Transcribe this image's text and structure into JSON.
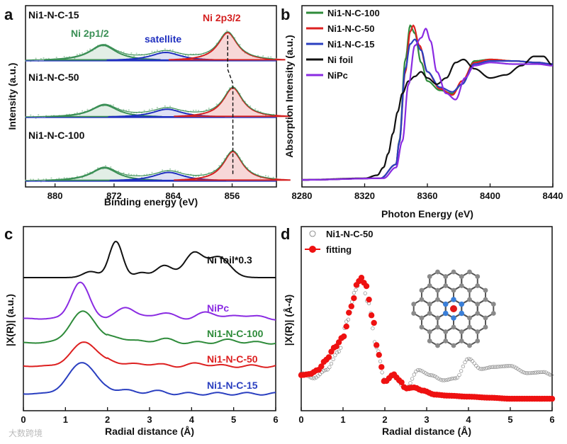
{
  "watermark": "大数跨境",
  "colors": {
    "ni100": "#2e8b3a",
    "ni50": "#dd2020",
    "ni15": "#2a3fc0",
    "nifoil": "#111111",
    "nipc": "#8a2be2",
    "xpsGreen": "#3a8f55",
    "xpsBlue": "#1f2fbf",
    "xpsRed": "#d42020",
    "fitRed": "#ee1111",
    "atomC": "#8a8a8a",
    "atomN": "#3a7fd8",
    "atomNi": "#e01818"
  },
  "panels": {
    "a": {
      "label": "a",
      "spectrum_labels": [
        "Ni1-N-C-15",
        "Ni1-N-C-50",
        "Ni1-N-C-100"
      ],
      "peak_labels": {
        "ni2p12": "Ni 2p1/2",
        "satellite": "satellite",
        "ni2p32": "Ni 2p3/2"
      }
    },
    "b": {
      "label": "b"
    },
    "c": {
      "label": "c"
    },
    "d": {
      "label": "d"
    }
  },
  "chart_data": [
    {
      "id": "a",
      "type": "line",
      "xlabel": "Binding energy (eV)",
      "ylabel": "Intensity (a.u.)",
      "xlim": [
        884,
        850
      ],
      "xticks": [
        880,
        872,
        864,
        856
      ],
      "reversed_x": true,
      "series": [
        {
          "sample": "Ni1-N-C-15",
          "peaks": [
            {
              "center": 873.5,
              "height": 0.55,
              "width": 2.2
            },
            {
              "center": 865.0,
              "height": 0.3,
              "width": 2.5
            },
            {
              "center": 856.6,
              "height": 1.0,
              "width": 1.6
            }
          ]
        },
        {
          "sample": "Ni1-N-C-50",
          "peaks": [
            {
              "center": 873.3,
              "height": 0.42,
              "width": 2.2
            },
            {
              "center": 864.8,
              "height": 0.28,
              "width": 2.5
            },
            {
              "center": 855.9,
              "height": 1.0,
              "width": 1.6
            }
          ]
        },
        {
          "sample": "Ni1-N-C-100",
          "peaks": [
            {
              "center": 873.3,
              "height": 0.45,
              "width": 2.2
            },
            {
              "center": 864.6,
              "height": 0.3,
              "width": 2.5
            },
            {
              "center": 855.9,
              "height": 1.0,
              "width": 1.6
            }
          ]
        }
      ]
    },
    {
      "id": "b",
      "type": "line",
      "xlabel": "Photon Energy (eV)",
      "ylabel": "Absorption Intensity (a.u.)",
      "xlim": [
        8280,
        8440
      ],
      "xticks": [
        8280,
        8320,
        8360,
        8400,
        8440
      ],
      "series": [
        {
          "name": "Ni1-N-C-100",
          "x": [
            8280,
            8330,
            8340,
            8342,
            8346,
            8349,
            8352,
            8356,
            8360,
            8368,
            8376,
            8382,
            8390,
            8400,
            8415,
            8430,
            8440
          ],
          "y": [
            0.0,
            0.01,
            0.1,
            0.25,
            0.78,
            1.0,
            0.95,
            0.76,
            0.64,
            0.58,
            0.56,
            0.62,
            0.77,
            0.78,
            0.77,
            0.76,
            0.75
          ]
        },
        {
          "name": "Ni1-N-C-50",
          "x": [
            8280,
            8330,
            8340,
            8342,
            8346,
            8349,
            8351,
            8355,
            8360,
            8368,
            8376,
            8382,
            8390,
            8400,
            8415,
            8430,
            8440
          ],
          "y": [
            0.0,
            0.01,
            0.1,
            0.24,
            0.7,
            0.96,
            1.0,
            0.87,
            0.7,
            0.59,
            0.55,
            0.64,
            0.76,
            0.78,
            0.77,
            0.76,
            0.75
          ]
        },
        {
          "name": "Ni1-N-C-15",
          "x": [
            8280,
            8330,
            8340,
            8342,
            8346,
            8349,
            8352,
            8356,
            8360,
            8368,
            8376,
            8382,
            8390,
            8400,
            8415,
            8430,
            8440
          ],
          "y": [
            0.0,
            0.01,
            0.1,
            0.24,
            0.72,
            0.88,
            0.91,
            0.84,
            0.7,
            0.6,
            0.57,
            0.62,
            0.75,
            0.77,
            0.77,
            0.76,
            0.75
          ]
        },
        {
          "name": "Ni foil",
          "x": [
            8280,
            8320,
            8328,
            8332,
            8335,
            8338,
            8341,
            8344,
            8348,
            8352,
            8356,
            8360,
            8366,
            8372,
            8378,
            8383,
            8390,
            8400,
            8410,
            8420,
            8428,
            8434,
            8440
          ],
          "y": [
            0.0,
            0.01,
            0.03,
            0.08,
            0.17,
            0.3,
            0.44,
            0.56,
            0.64,
            0.67,
            0.7,
            0.66,
            0.62,
            0.66,
            0.76,
            0.78,
            0.72,
            0.66,
            0.68,
            0.74,
            0.8,
            0.8,
            0.74
          ]
        },
        {
          "name": "NiPc",
          "x": [
            8280,
            8332,
            8340,
            8344,
            8348,
            8352,
            8356,
            8359,
            8362,
            8366,
            8372,
            8378,
            8384,
            8390,
            8400,
            8415,
            8430,
            8440
          ],
          "y": [
            0.0,
            0.01,
            0.08,
            0.25,
            0.62,
            0.87,
            0.92,
            0.98,
            0.9,
            0.7,
            0.56,
            0.52,
            0.66,
            0.74,
            0.76,
            0.75,
            0.75,
            0.74
          ]
        }
      ],
      "legend": "top-left"
    },
    {
      "id": "c",
      "type": "line",
      "xlabel": "Radial distance (Å)",
      "ylabel": "|X(R)| (a.u.)",
      "xlim": [
        0,
        6
      ],
      "xticks": [
        0,
        1,
        2,
        3,
        4,
        5,
        6
      ],
      "series": [
        {
          "name": "Ni foil*0.3",
          "peaks": [
            {
              "center": 2.2,
              "height": 0.3,
              "width": 0.16
            },
            {
              "center": 1.6,
              "height": 0.05,
              "width": 0.18
            },
            {
              "center": 3.35,
              "height": 0.1,
              "width": 0.2
            },
            {
              "center": 4.05,
              "height": 0.2,
              "width": 0.22
            },
            {
              "center": 4.65,
              "height": 0.17,
              "width": 0.26
            },
            {
              "center": 2.8,
              "height": 0.04,
              "width": 0.15
            }
          ]
        },
        {
          "name": "NiPc",
          "peaks": [
            {
              "center": 1.35,
              "height": 0.3,
              "width": 0.22
            },
            {
              "center": 2.45,
              "height": 0.1,
              "width": 0.2
            },
            {
              "center": 3.3,
              "height": 0.05,
              "width": 0.22
            },
            {
              "center": 4.4,
              "height": 0.05,
              "width": 0.25
            },
            {
              "center": 5.3,
              "height": 0.03,
              "width": 0.25
            }
          ]
        },
        {
          "name": "Ni1-N-C-100",
          "peaks": [
            {
              "center": 1.42,
              "height": 0.26,
              "width": 0.3
            },
            {
              "center": 2.3,
              "height": 0.04,
              "width": 0.25
            },
            {
              "center": 3.3,
              "height": 0.03,
              "width": 0.25
            },
            {
              "center": 4.9,
              "height": 0.02,
              "width": 0.25
            }
          ]
        },
        {
          "name": "Ni1-N-C-50",
          "peaks": [
            {
              "center": 1.45,
              "height": 0.2,
              "width": 0.3
            },
            {
              "center": 2.2,
              "height": 0.03,
              "width": 0.25
            },
            {
              "center": 3.0,
              "height": 0.02,
              "width": 0.25
            },
            {
              "center": 4.2,
              "height": 0.02,
              "width": 0.25
            }
          ]
        },
        {
          "name": "Ni1-N-C-15",
          "peaks": [
            {
              "center": 1.4,
              "height": 0.26,
              "width": 0.32
            },
            {
              "center": 2.3,
              "height": 0.03,
              "width": 0.25
            },
            {
              "center": 3.1,
              "height": 0.02,
              "width": 0.25
            }
          ]
        }
      ]
    },
    {
      "id": "d",
      "type": "scatter",
      "xlabel": "Radial distance (Å)",
      "ylabel": "|X(R)| (Å-4)",
      "xlim": [
        0,
        6
      ],
      "xticks": [
        0,
        1,
        2,
        3,
        4,
        5,
        6
      ],
      "series": [
        {
          "name": "Ni1-N-C-50",
          "style": "open-circles",
          "x": [
            0,
            0.3,
            0.6,
            0.9,
            1.1,
            1.3,
            1.43,
            1.6,
            1.8,
            2.0,
            2.2,
            2.5,
            2.8,
            3.1,
            3.4,
            3.7,
            4.0,
            4.3,
            4.6,
            5.0,
            5.4,
            5.8,
            6.0
          ],
          "y": [
            0.27,
            0.22,
            0.3,
            0.48,
            0.78,
            1.08,
            1.2,
            0.96,
            0.52,
            0.2,
            0.24,
            0.12,
            0.3,
            0.25,
            0.2,
            0.22,
            0.41,
            0.31,
            0.33,
            0.34,
            0.27,
            0.28,
            0.25
          ]
        },
        {
          "name": "fitting",
          "style": "filled-circles",
          "x": [
            0,
            0.2,
            0.4,
            0.6,
            0.8,
            1.0,
            1.2,
            1.35,
            1.43,
            1.55,
            1.7,
            1.85,
            2.0,
            2.1,
            2.2,
            2.35,
            2.5,
            2.7,
            2.9,
            3.2,
            3.5,
            4.0,
            4.5,
            5.0,
            5.5,
            6.0
          ],
          "y": [
            0.25,
            0.26,
            0.3,
            0.4,
            0.52,
            0.62,
            0.92,
            1.15,
            1.2,
            1.12,
            0.82,
            0.45,
            0.18,
            0.22,
            0.26,
            0.2,
            0.12,
            0.13,
            0.1,
            0.06,
            0.05,
            0.04,
            0.03,
            0.02,
            0.02,
            0.02
          ]
        }
      ],
      "legend": "top-left"
    }
  ]
}
